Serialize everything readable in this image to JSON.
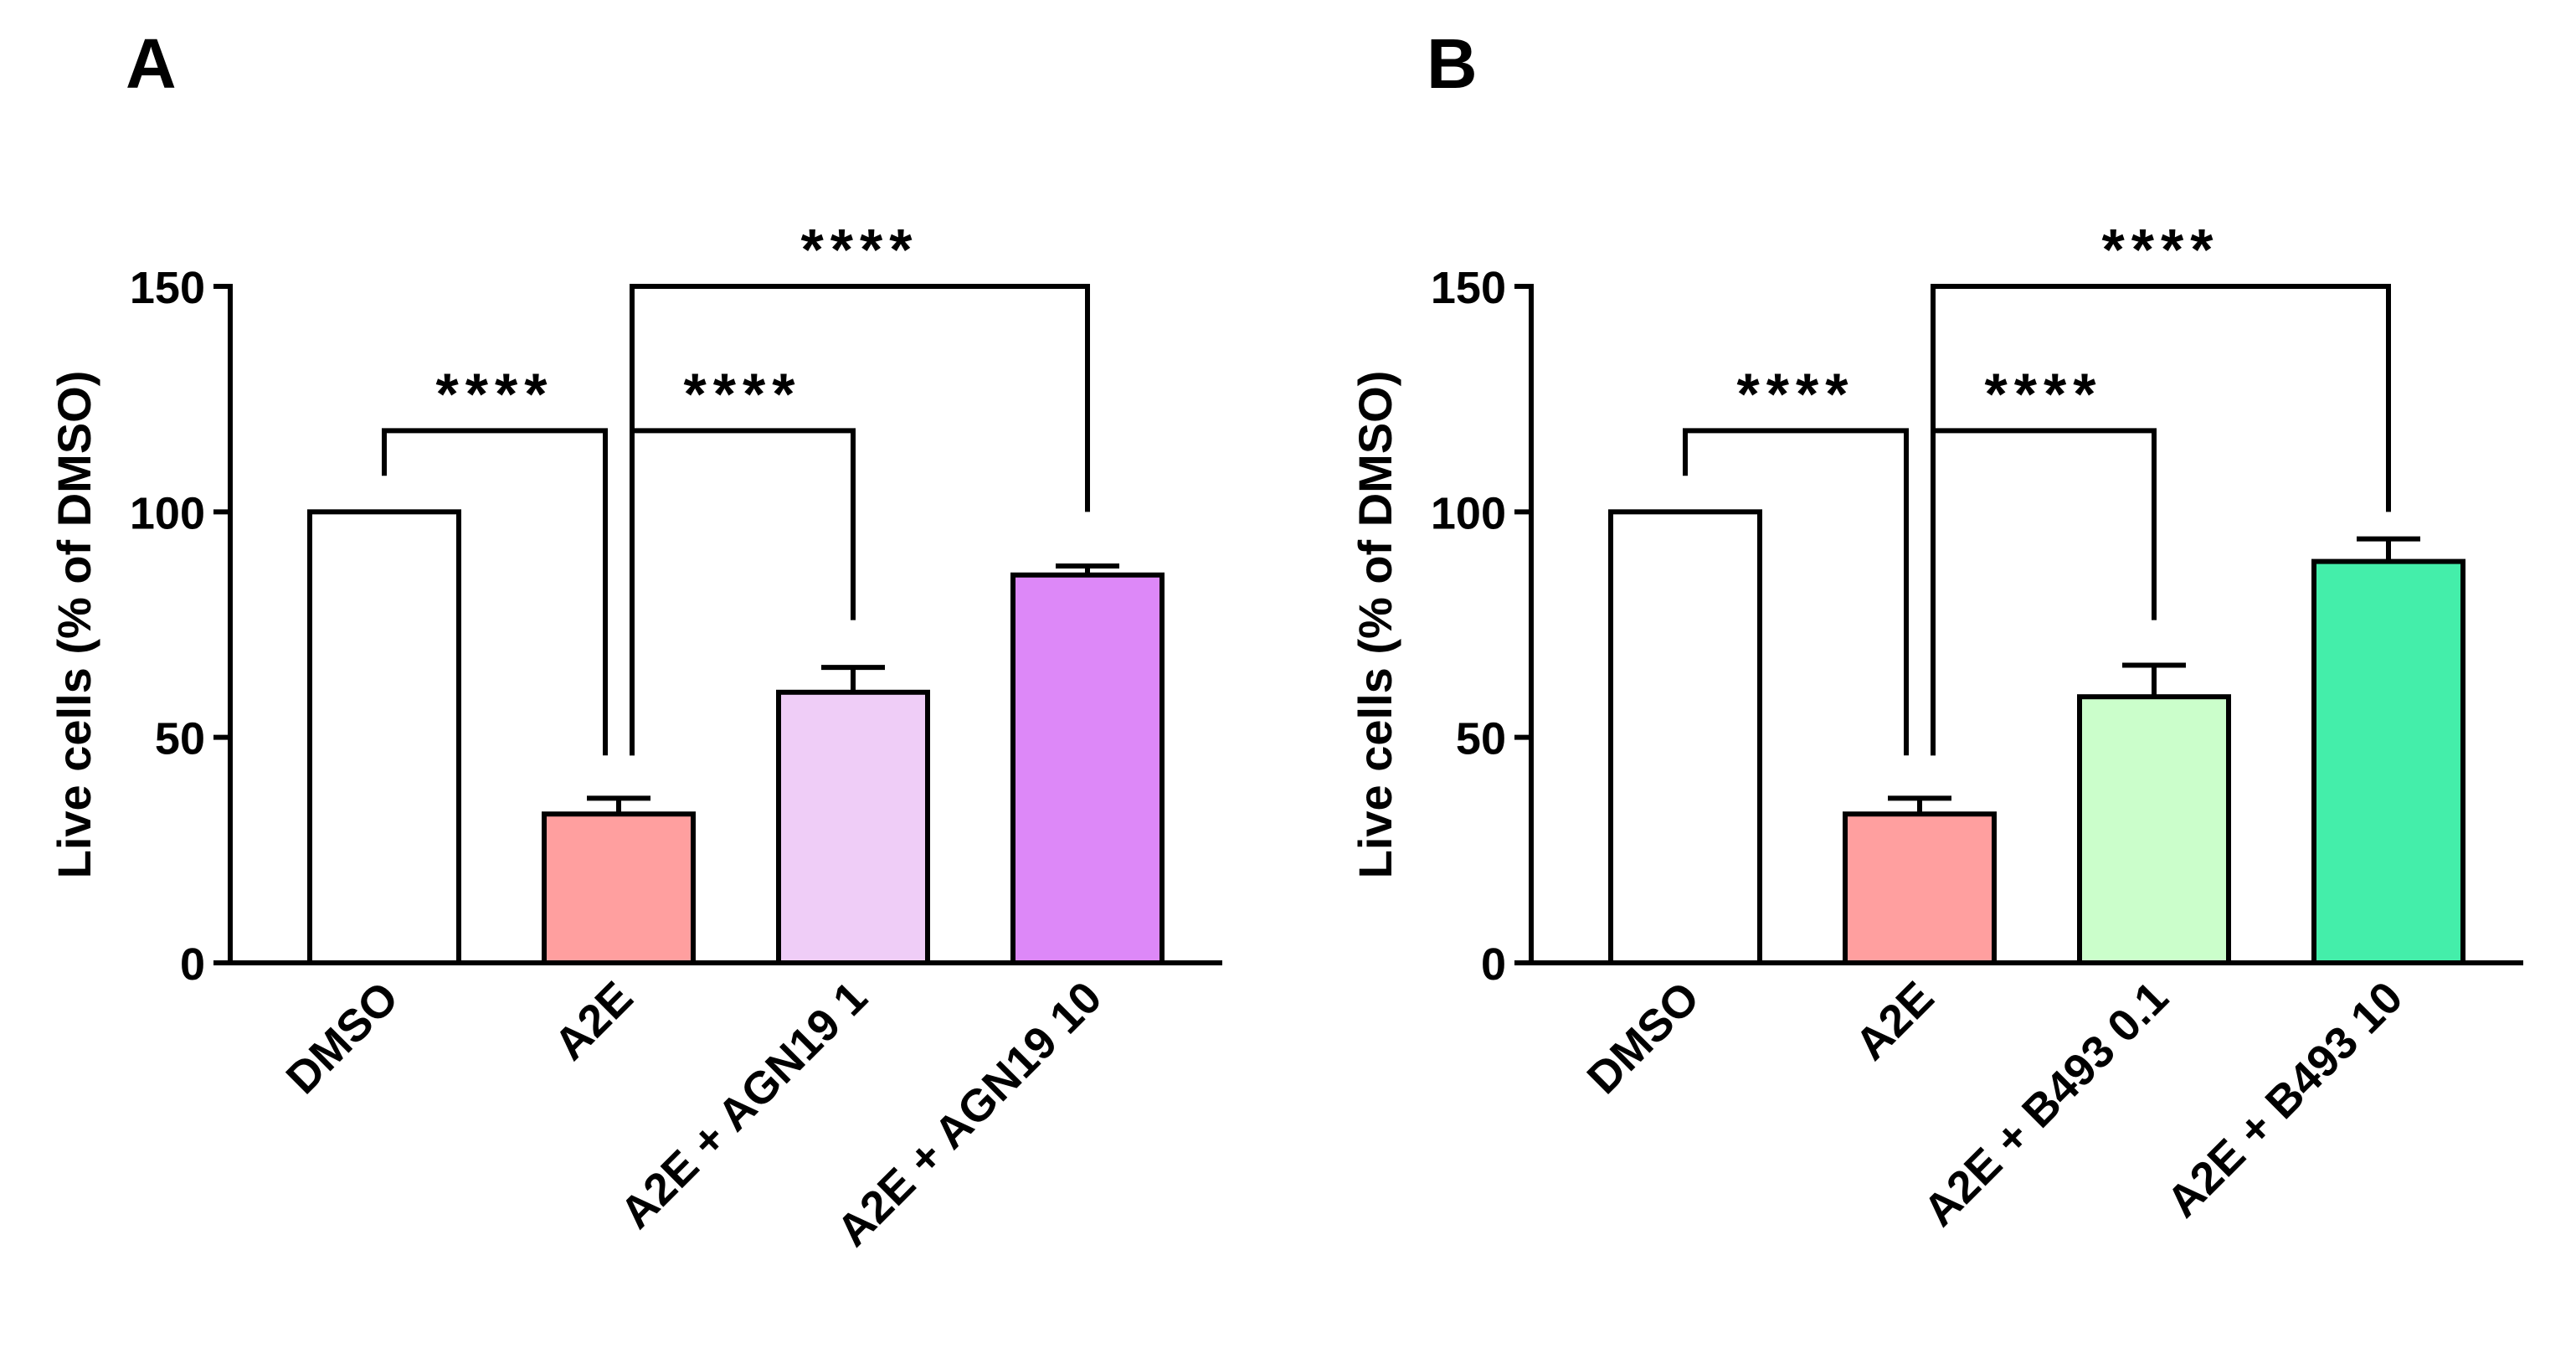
{
  "chart_data": [
    {
      "panel_label": "A",
      "type": "bar",
      "ylabel": "Live cells (% of DMSO)",
      "ylim": [
        0,
        150
      ],
      "yticks": [
        0,
        50,
        100,
        150
      ],
      "categories": [
        "DMSO",
        "A2E",
        "A2E + AGN19 1",
        "A2E + AGN19 10"
      ],
      "values": [
        100,
        33,
        60,
        86
      ],
      "errors": [
        0,
        3.5,
        5.5,
        2
      ],
      "colors": [
        "#FFFFFF",
        "#FF9F9F",
        "#EFCDF7",
        "#DD88F8"
      ],
      "comparisons": [
        {
          "from": 0,
          "to": 1,
          "label": "****"
        },
        {
          "from": 1,
          "to": 2,
          "label": "****"
        },
        {
          "from": 1,
          "to": 3,
          "label": "****"
        }
      ]
    },
    {
      "panel_label": "B",
      "type": "bar",
      "ylabel": "Live cells (% of DMSO)",
      "ylim": [
        0,
        150
      ],
      "yticks": [
        0,
        50,
        100,
        150
      ],
      "categories": [
        "DMSO",
        "A2E",
        "A2E + B493 0.1",
        "A2E + B493 10"
      ],
      "values": [
        100,
        33,
        59,
        89
      ],
      "errors": [
        0,
        3.5,
        7,
        5
      ],
      "colors": [
        "#FFFFFF",
        "#FF9F9F",
        "#CBFECB",
        "#44EEAA"
      ],
      "comparisons": [
        {
          "from": 0,
          "to": 1,
          "label": "****"
        },
        {
          "from": 1,
          "to": 2,
          "label": "****"
        },
        {
          "from": 1,
          "to": 3,
          "label": "****"
        }
      ]
    }
  ]
}
